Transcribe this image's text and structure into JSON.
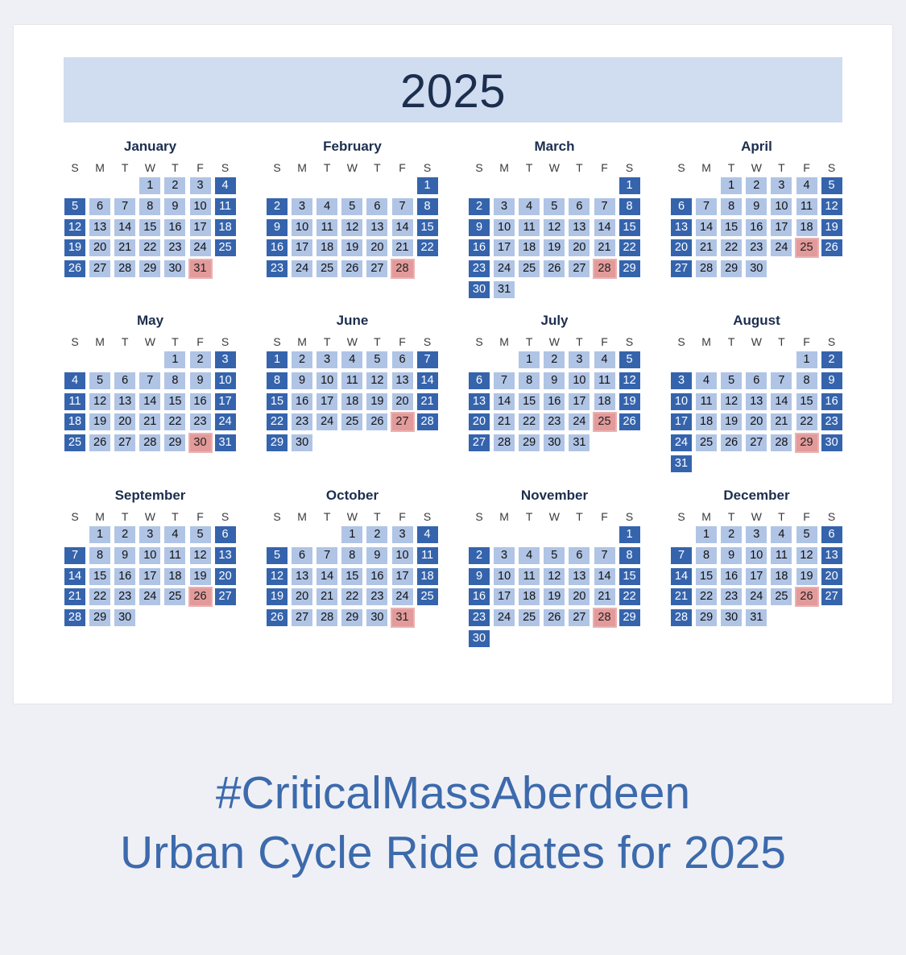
{
  "year": "2025",
  "caption": {
    "line1": "#CriticalMassAberdeen",
    "line2": "Urban Cycle Ride dates for 2025"
  },
  "colors": {
    "banner": "#d0dcef",
    "weekday_cell": "#b0c4e5",
    "weekend_cell": "#3564ad",
    "ride_cell": "#e39a9a",
    "caption": "#3c6aac"
  },
  "weekday_headers": [
    "S",
    "M",
    "T",
    "W",
    "T",
    "F",
    "S"
  ],
  "months": [
    {
      "name": "January",
      "start": 3,
      "days": 31,
      "ride": 31
    },
    {
      "name": "February",
      "start": 6,
      "days": 28,
      "ride": 28
    },
    {
      "name": "March",
      "start": 6,
      "days": 31,
      "ride": 28
    },
    {
      "name": "April",
      "start": 2,
      "days": 30,
      "ride": 25
    },
    {
      "name": "May",
      "start": 4,
      "days": 31,
      "ride": 30
    },
    {
      "name": "June",
      "start": 0,
      "days": 30,
      "ride": 27
    },
    {
      "name": "July",
      "start": 2,
      "days": 31,
      "ride": 25
    },
    {
      "name": "August",
      "start": 5,
      "days": 31,
      "ride": 29
    },
    {
      "name": "September",
      "start": 1,
      "days": 30,
      "ride": 26
    },
    {
      "name": "October",
      "start": 3,
      "days": 31,
      "ride": 31
    },
    {
      "name": "November",
      "start": 6,
      "days": 30,
      "ride": 28
    },
    {
      "name": "December",
      "start": 1,
      "days": 31,
      "ride": 26
    }
  ]
}
